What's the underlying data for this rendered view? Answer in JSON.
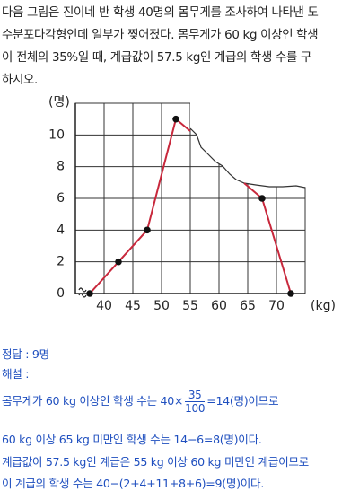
{
  "problem": {
    "lines": [
      "다음 그림은 진이네 반 학생 40명의 몸무게를 조사하여 나타낸 도",
      "수분포다각형인데 일부가 찢어졌다. 몸무게가 60 kg 이상인 학생",
      "이 전체의 35%일 때, 계급값이 57.5 kg인 계급의 학생 수를 구",
      "하시오."
    ]
  },
  "chart_data": {
    "type": "line",
    "x_label": "(kg)",
    "y_label": "(명)",
    "x": [
      37.5,
      42.5,
      47.5,
      52.5,
      57.5,
      62.5,
      67.5,
      72.5
    ],
    "values": [
      0,
      2,
      4,
      11,
      null,
      null,
      6,
      0
    ],
    "color": "#c8283c",
    "xlim": [
      35,
      75
    ],
    "xticks": [
      40,
      45,
      50,
      55,
      60,
      65,
      70
    ],
    "ylim": [
      0,
      12
    ],
    "yticks": [
      0,
      2,
      4,
      6,
      8,
      10
    ],
    "grid": true
  },
  "solution": {
    "answer": "정답 : 9명",
    "heading": "해설 :",
    "line1": {
      "before": "몸무게가 60 kg 이상인 학생 수는 40×",
      "numerator": "35",
      "denominator": "100",
      "after": "=14(명)이므로"
    },
    "line2": "60 kg 이상 65 kg 미만인 학생 수는 14−6=8(명)이다.",
    "line3": "계급값이 57.5 kg인 계급은 55 kg 이상 60 kg 미만인 계급이므로",
    "line4": "이 계급의 학생 수는 40−(2+4+11+8+6)=9(명)이다."
  }
}
